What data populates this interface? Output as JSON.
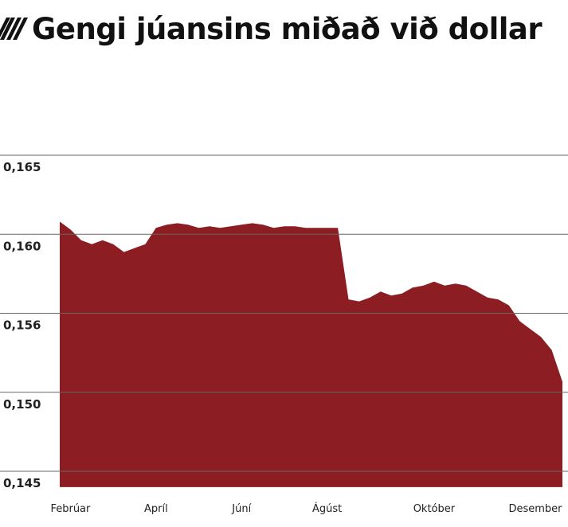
{
  "chart_data": {
    "type": "area",
    "title": "Gengi júansins miðað við dollar",
    "color": "#8c1d22",
    "grid": true,
    "categories": [
      null,
      "Febrúar",
      null,
      null,
      null,
      null,
      null,
      null,
      null,
      "Apríl",
      null,
      null,
      null,
      null,
      null,
      null,
      null,
      "Júní",
      null,
      null,
      null,
      null,
      null,
      null,
      null,
      "Ágúst",
      null,
      null,
      null,
      null,
      null,
      null,
      null,
      null,
      null,
      "Október",
      null,
      null,
      null,
      null,
      null,
      null,
      null,
      null,
      null,
      "Desember",
      null,
      null
    ],
    "values": [
      0.1608,
      0.1603,
      0.1597,
      0.1595,
      0.1597,
      0.1595,
      0.1591,
      0.1593,
      0.1595,
      0.1604,
      0.1606,
      0.1607,
      0.1606,
      0.1604,
      0.1605,
      0.1604,
      0.1605,
      0.1606,
      0.1607,
      0.1606,
      0.1604,
      0.1605,
      0.1605,
      0.1604,
      0.1604,
      0.1604,
      0.1604,
      0.1567,
      0.1566,
      0.1568,
      0.1571,
      0.1569,
      0.157,
      0.1573,
      0.1574,
      0.1576,
      0.1574,
      0.1575,
      0.1574,
      0.1571,
      0.1568,
      0.1567,
      0.1564,
      0.1554,
      0.1548,
      0.1542,
      0.1532,
      0.1508
    ],
    "ylim": [
      0.144,
      0.165
    ],
    "yticks": [
      {
        "value": 0.165,
        "label": "0,165"
      },
      {
        "value": 0.16,
        "label": "0,160"
      },
      {
        "value": 0.156,
        "label": "0,156"
      },
      {
        "value": 0.15,
        "label": "0,150"
      },
      {
        "value": 0.145,
        "label": "0,145"
      }
    ]
  }
}
